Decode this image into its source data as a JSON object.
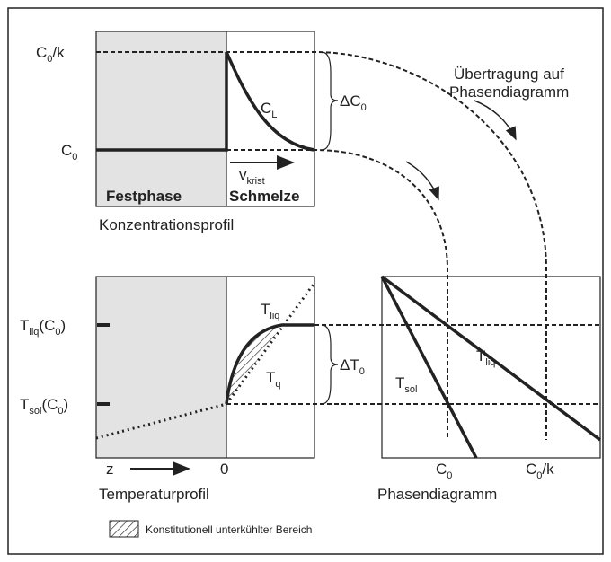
{
  "concentration": {
    "c0k": {
      "main": "C",
      "sub": "0",
      "suffix": "/k"
    },
    "c0": {
      "main": "C",
      "sub": "0"
    },
    "cl": {
      "main": "C",
      "sub": "L"
    },
    "delta": {
      "main": "ΔC",
      "sub": "0"
    },
    "velocity": {
      "main": "v",
      "sub": "krist"
    },
    "solid": "Festphase",
    "melt": "Schmelze",
    "caption": "Konzentrationsprofil"
  },
  "transfer": [
    "Übertragung auf",
    "Phasendiagramm"
  ],
  "temperature": {
    "tliq_c0": {
      "main": "T",
      "sub": "liq",
      "suffix": "(C",
      "sub2": "0",
      "suffix2": ")"
    },
    "tsol_c0": {
      "main": "T",
      "sub": "sol",
      "suffix": "(C",
      "sub2": "0",
      "suffix2": ")"
    },
    "tliq": {
      "main": "T",
      "sub": "liq"
    },
    "tq": {
      "main": "T",
      "sub": "q"
    },
    "delta": {
      "main": "ΔT",
      "sub": "0"
    },
    "z": "z",
    "zero": "0",
    "caption": "Temperaturprofil"
  },
  "phase": {
    "tsol": {
      "main": "T",
      "sub": "sol"
    },
    "tliq": {
      "main": "T",
      "sub": "liq"
    },
    "c0": {
      "main": "C",
      "sub": "0"
    },
    "c0k": {
      "main": "C",
      "sub": "0",
      "suffix": "/k"
    },
    "caption": "Phasendiagramm"
  },
  "legend": "Konstitutionell unterkühlter Bereich"
}
